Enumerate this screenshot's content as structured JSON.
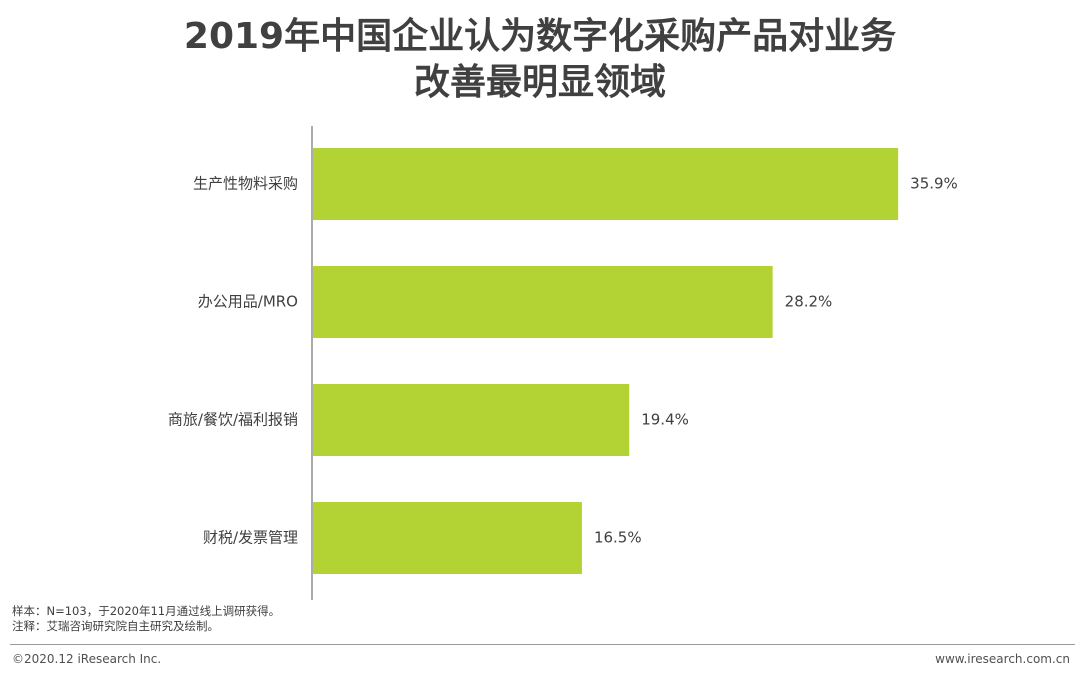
{
  "title": {
    "line1": "2019年中国企业认为数字化采购产品对业务",
    "line2": "改善最明显领域"
  },
  "chart_data": {
    "type": "bar",
    "orientation": "horizontal",
    "categories": [
      "生产性物料采购",
      "办公用品/MRO",
      "商旅/餐饮/福利报销",
      "财税/发票管理"
    ],
    "values": [
      35.9,
      28.2,
      19.4,
      16.5
    ],
    "data_labels": [
      "35.9%",
      "28.2%",
      "19.4%",
      "16.5%"
    ],
    "xlim": [
      0,
      40
    ],
    "grid": false,
    "bar_color": "#b3d335"
  },
  "notes": {
    "sample": "样本：N=103，于2020年11月通过线上调研获得。",
    "note": "注释：艾瑞咨询研究院自主研究及绘制。"
  },
  "footer": {
    "copyright": "©2020.12 iResearch Inc.",
    "website": "www.iresearch.com.cn"
  }
}
